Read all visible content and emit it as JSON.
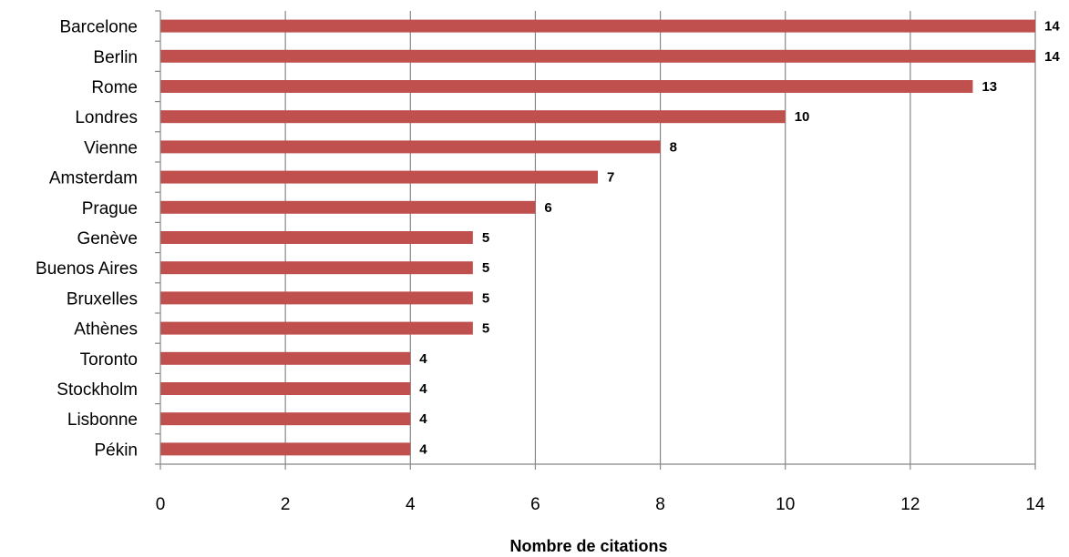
{
  "chart_data": {
    "type": "bar",
    "orientation": "horizontal",
    "categories": [
      "Barcelone",
      "Berlin",
      "Rome",
      "Londres",
      "Vienne",
      "Amsterdam",
      "Prague",
      "Genève",
      "Buenos Aires",
      "Bruxelles",
      "Athènes",
      "Toronto",
      "Stockholm",
      "Lisbonne",
      "Pékin"
    ],
    "values": [
      14,
      14,
      13,
      10,
      8,
      7,
      6,
      5,
      5,
      5,
      5,
      4,
      4,
      4,
      4
    ],
    "title": "",
    "xlabel": "Nombre de citations",
    "ylabel": "",
    "xlim": [
      0,
      14
    ],
    "xticks": [
      "0",
      "2",
      "4",
      "6",
      "8",
      "10",
      "12",
      "14"
    ],
    "grid": "vertical",
    "data_labels": true,
    "legend": "none",
    "bar_color": "#C0504D",
    "grid_color": "#868686"
  }
}
